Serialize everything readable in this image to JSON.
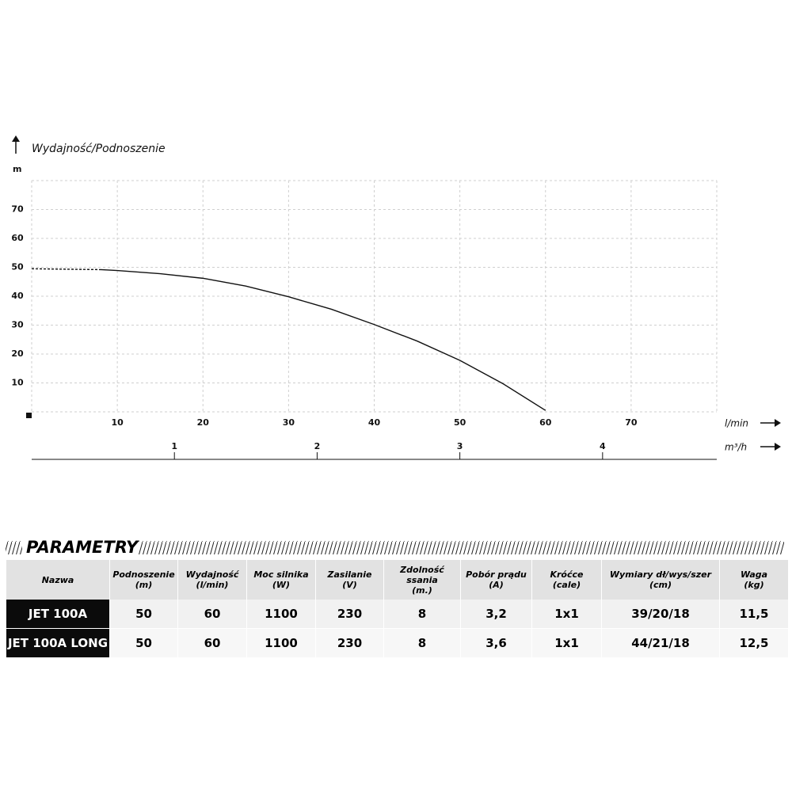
{
  "chart_data": {
    "type": "line",
    "title": "Wydajność/Podnoszenie",
    "y_label": "m",
    "x_label": "l/min",
    "x2_label": "m³/h",
    "x": [
      0,
      8,
      10,
      15,
      20,
      25,
      30,
      35,
      40,
      45,
      50,
      55,
      60
    ],
    "series": [
      {
        "color": "#111111",
        "dash": true,
        "values": [
          49.5,
          49.2,
          null,
          null,
          null,
          null,
          null,
          null,
          null,
          null,
          null,
          null,
          null
        ]
      },
      {
        "color": "#111111",
        "dash": false,
        "values": [
          null,
          49.2,
          48.9,
          47.8,
          46.2,
          43.5,
          39.8,
          35.5,
          30.2,
          24.5,
          17.8,
          9.8,
          0.5
        ]
      }
    ],
    "xlim": [
      0,
      80
    ],
    "xticks": [
      10,
      20,
      30,
      40,
      50,
      60,
      70
    ],
    "ylim": [
      0,
      80
    ],
    "yticks": [
      10,
      20,
      30,
      40,
      50,
      60,
      70
    ],
    "x2lim": [
      0,
      4.8
    ],
    "x2ticks": [
      1,
      2,
      3,
      4
    ],
    "grid": true
  },
  "table": {
    "title": "PARAMETRY",
    "columns": [
      {
        "name": "Nazwa"
      },
      {
        "name": "Podnoszenie",
        "unit": "(m)"
      },
      {
        "name": "Wydajność",
        "unit": "(l/min)"
      },
      {
        "name": "Moc silnika",
        "unit": "(W)"
      },
      {
        "name": "Zasilanie",
        "unit": "(V)"
      },
      {
        "name": "Zdolność ssania",
        "unit": "(m.)"
      },
      {
        "name": "Pobór prądu",
        "unit": "(A)"
      },
      {
        "name": "Króćce",
        "unit": "(cale)"
      },
      {
        "name": "Wymiary dł/wys/szer",
        "unit": "(cm)"
      },
      {
        "name": "Waga",
        "unit": "(kg)"
      }
    ],
    "rows": [
      [
        "JET 100A",
        "50",
        "60",
        "1100",
        "230",
        "8",
        "3,2",
        "1x1",
        "39/20/18",
        "11,5"
      ],
      [
        "JET 100A LONG",
        "50",
        "60",
        "1100",
        "230",
        "8",
        "3,6",
        "1x1",
        "44/21/18",
        "12,5"
      ]
    ]
  }
}
